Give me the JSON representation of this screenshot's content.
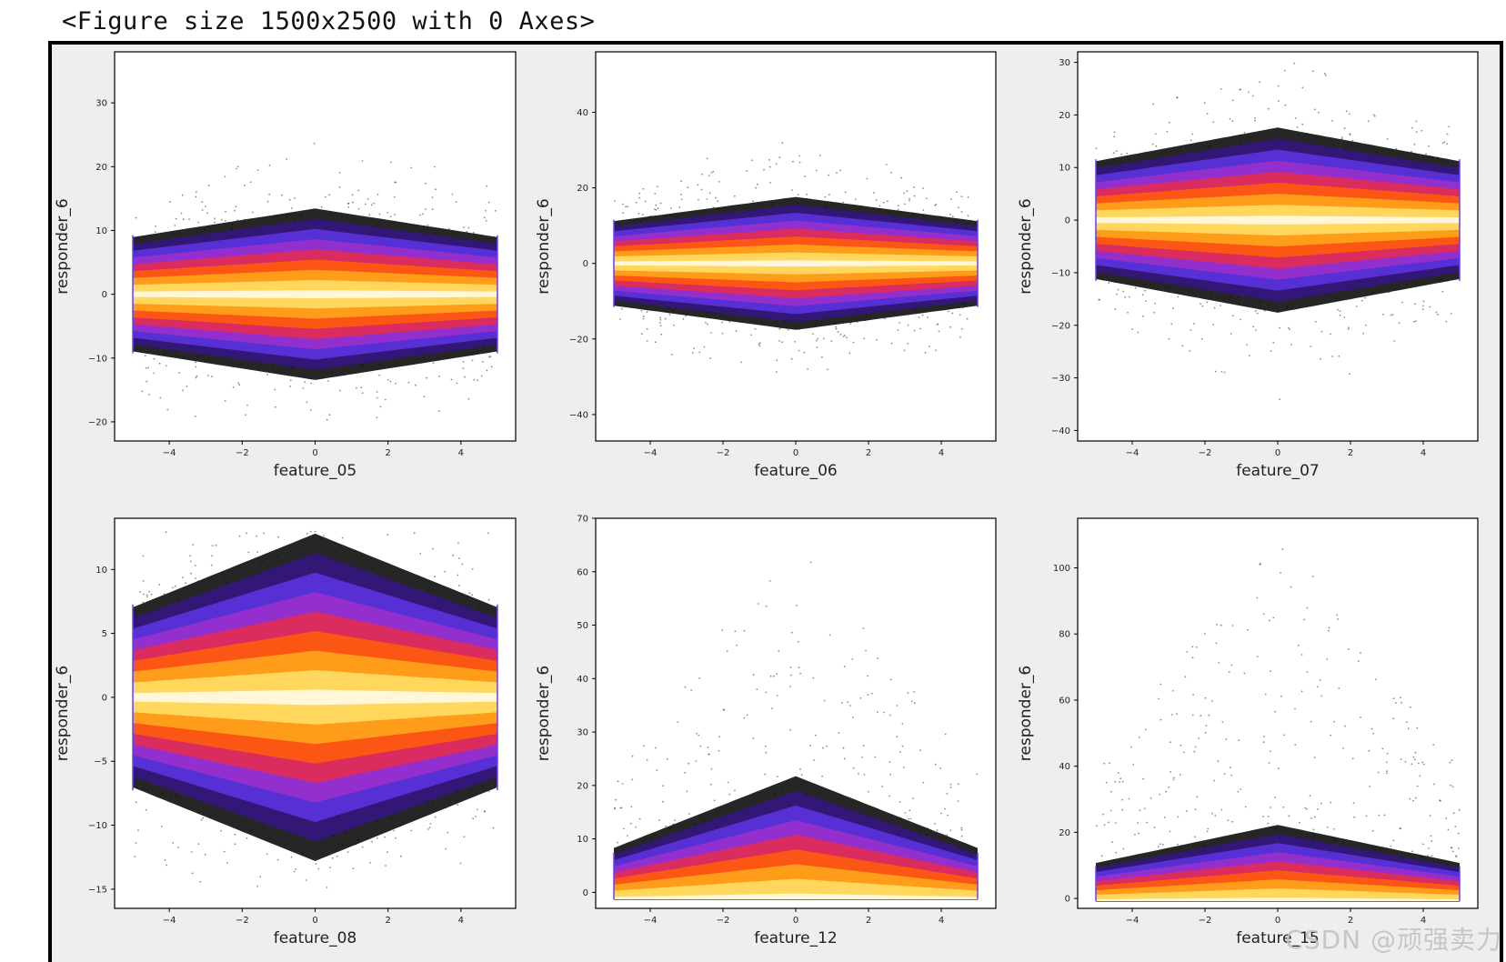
{
  "figure": {
    "caption": "<Figure size 1500x2500 with 0 Axes>",
    "background": "#eeeeee",
    "watermark": "CSDN @顽强卖力"
  },
  "chart_data": [
    {
      "type": "scatter",
      "title": "",
      "xlabel": "feature_05",
      "ylabel": "responder_6",
      "xlim": [
        -5.5,
        5.5
      ],
      "ylim": [
        -23,
        38
      ],
      "xticks": [
        -4,
        -2,
        0,
        2,
        4
      ],
      "yticks": [
        -20,
        -10,
        0,
        10,
        20,
        30
      ],
      "xtick_labels": [
        "−4",
        "−2",
        "0",
        "2",
        "4"
      ],
      "ytick_labels": [
        "−20",
        "−10",
        "0",
        "10",
        "20",
        "30"
      ],
      "density_center": 0,
      "spread_center": 4.2,
      "spread_edge": 2.8,
      "outlier_range": [
        -20,
        35
      ],
      "baseline": null
    },
    {
      "type": "scatter",
      "title": "",
      "xlabel": "feature_06",
      "ylabel": "responder_6",
      "xlim": [
        -5.5,
        5.5
      ],
      "ylim": [
        -47,
        56
      ],
      "xticks": [
        -4,
        -2,
        0,
        2,
        4
      ],
      "yticks": [
        -40,
        -20,
        0,
        20,
        40
      ],
      "xtick_labels": [
        "−4",
        "−2",
        "0",
        "2",
        "4"
      ],
      "ytick_labels": [
        "−40",
        "−20",
        "0",
        "20",
        "40"
      ],
      "density_center": 0,
      "spread_center": 5.5,
      "spread_edge": 3.5,
      "outlier_range": [
        -42,
        53
      ],
      "baseline": null
    },
    {
      "type": "scatter",
      "title": "",
      "xlabel": "feature_07",
      "ylabel": "responder_6",
      "xlim": [
        -5.5,
        5.5
      ],
      "ylim": [
        -42,
        32
      ],
      "xticks": [
        -4,
        -2,
        0,
        2,
        4
      ],
      "yticks": [
        -40,
        -30,
        -20,
        -10,
        0,
        10,
        20,
        30
      ],
      "xtick_labels": [
        "−4",
        "−2",
        "0",
        "2",
        "4"
      ],
      "ytick_labels": [
        "−40",
        "−30",
        "−20",
        "−10",
        "0",
        "10",
        "20",
        "30"
      ],
      "density_center": 0,
      "spread_center": 5.5,
      "spread_edge": 3.5,
      "outlier_range": [
        -39,
        30
      ],
      "baseline": null
    },
    {
      "type": "scatter",
      "title": "",
      "xlabel": "feature_08",
      "ylabel": "responder_6",
      "xlim": [
        -5.5,
        5.5
      ],
      "ylim": [
        -16.5,
        14
      ],
      "xticks": [
        -4,
        -2,
        0,
        2,
        4
      ],
      "yticks": [
        -15,
        -10,
        -5,
        0,
        5,
        10
      ],
      "xtick_labels": [
        "−4",
        "−2",
        "0",
        "2",
        "4"
      ],
      "ytick_labels": [
        "−15",
        "−10",
        "−5",
        "0",
        "5",
        "10"
      ],
      "density_center": 0,
      "spread_center": 4.0,
      "spread_edge": 2.2,
      "outlier_range": [
        -15,
        13
      ],
      "baseline": null
    },
    {
      "type": "scatter",
      "title": "",
      "xlabel": "feature_12",
      "ylabel": "responder_6",
      "xlim": [
        -5.5,
        5.5
      ],
      "ylim": [
        -3,
        70
      ],
      "xticks": [
        -4,
        -2,
        0,
        2,
        4
      ],
      "yticks": [
        0,
        10,
        20,
        30,
        40,
        50,
        60,
        70
      ],
      "xtick_labels": [
        "−4",
        "−2",
        "0",
        "2",
        "4"
      ],
      "ytick_labels": [
        "0",
        "10",
        "20",
        "30",
        "40",
        "50",
        "60",
        "70"
      ],
      "density_center": 0,
      "spread_center": 6.0,
      "spread_edge": 2.5,
      "outlier_range": [
        0,
        67
      ],
      "baseline": -1.3
    },
    {
      "type": "scatter",
      "title": "",
      "xlabel": "feature_15",
      "ylabel": "responder_6",
      "xlim": [
        -5.5,
        5.5
      ],
      "ylim": [
        -3,
        115
      ],
      "xticks": [
        -4,
        -2,
        0,
        2,
        4
      ],
      "yticks": [
        0,
        20,
        40,
        60,
        80,
        100
      ],
      "xtick_labels": [
        "−4",
        "−2",
        "0",
        "2",
        "4"
      ],
      "ytick_labels": [
        "0",
        "20",
        "40",
        "60",
        "80",
        "100"
      ],
      "density_center": 0,
      "spread_center": 6.0,
      "spread_edge": 3.0,
      "outlier_range": [
        0,
        112
      ],
      "baseline": -0.8
    }
  ],
  "colors": {
    "density_colormap": [
      "#000000",
      "#2b0f6b",
      "#5a33e0",
      "#a52fc8",
      "#ff2a1a",
      "#ff8a00",
      "#ffd84a",
      "#fffbe6"
    ],
    "axes_face": "#ffffff",
    "text": "#222222"
  }
}
